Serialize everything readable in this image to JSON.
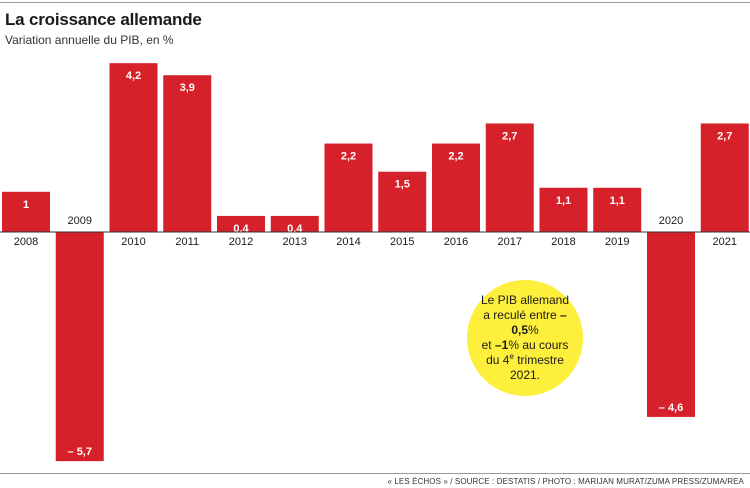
{
  "header": {
    "title": "La croissance allemande",
    "subtitle": "Variation annuelle du PIB, en %"
  },
  "chart_data": {
    "type": "bar",
    "title": "La croissance allemande",
    "subtitle": "Variation annuelle du PIB, en %",
    "categories": [
      "2008",
      "2009",
      "2010",
      "2011",
      "2012",
      "2013",
      "2014",
      "2015",
      "2016",
      "2017",
      "2018",
      "2019",
      "2020",
      "2021"
    ],
    "values": [
      1,
      -5.7,
      4.2,
      3.9,
      0.4,
      0.4,
      2.2,
      1.5,
      2.2,
      2.7,
      1.1,
      1.1,
      -4.6,
      2.7
    ],
    "value_labels": [
      "1",
      "– 5,7",
      "4,2",
      "3,9",
      "0,4",
      "0,4",
      "2,2",
      "1,5",
      "2,2",
      "2,7",
      "1,1",
      "1,1",
      "– 4,6",
      "2,7"
    ],
    "ylim": [
      -5.7,
      4.2
    ],
    "grid": false,
    "bar_color": "#d6202a",
    "annotation": {
      "line1": "Le PIB allemand",
      "line2_pre": "a reculé entre ",
      "line2_v1": "–0,5",
      "line2_pct": "%",
      "line3_pre": "et ",
      "line3_v2": "–1",
      "line3_post": "% au cours",
      "line4_pre": "du 4",
      "line4_sup": "e",
      "line4_post": " trimestre 2021.",
      "color": "#fdef3b"
    }
  },
  "footer": {
    "source": "« LES ÉCHOS » / SOURCE : DESTATIS / PHOTO : MARIJAN MURAT/ZUMA PRESS/ZUMA/REA"
  }
}
